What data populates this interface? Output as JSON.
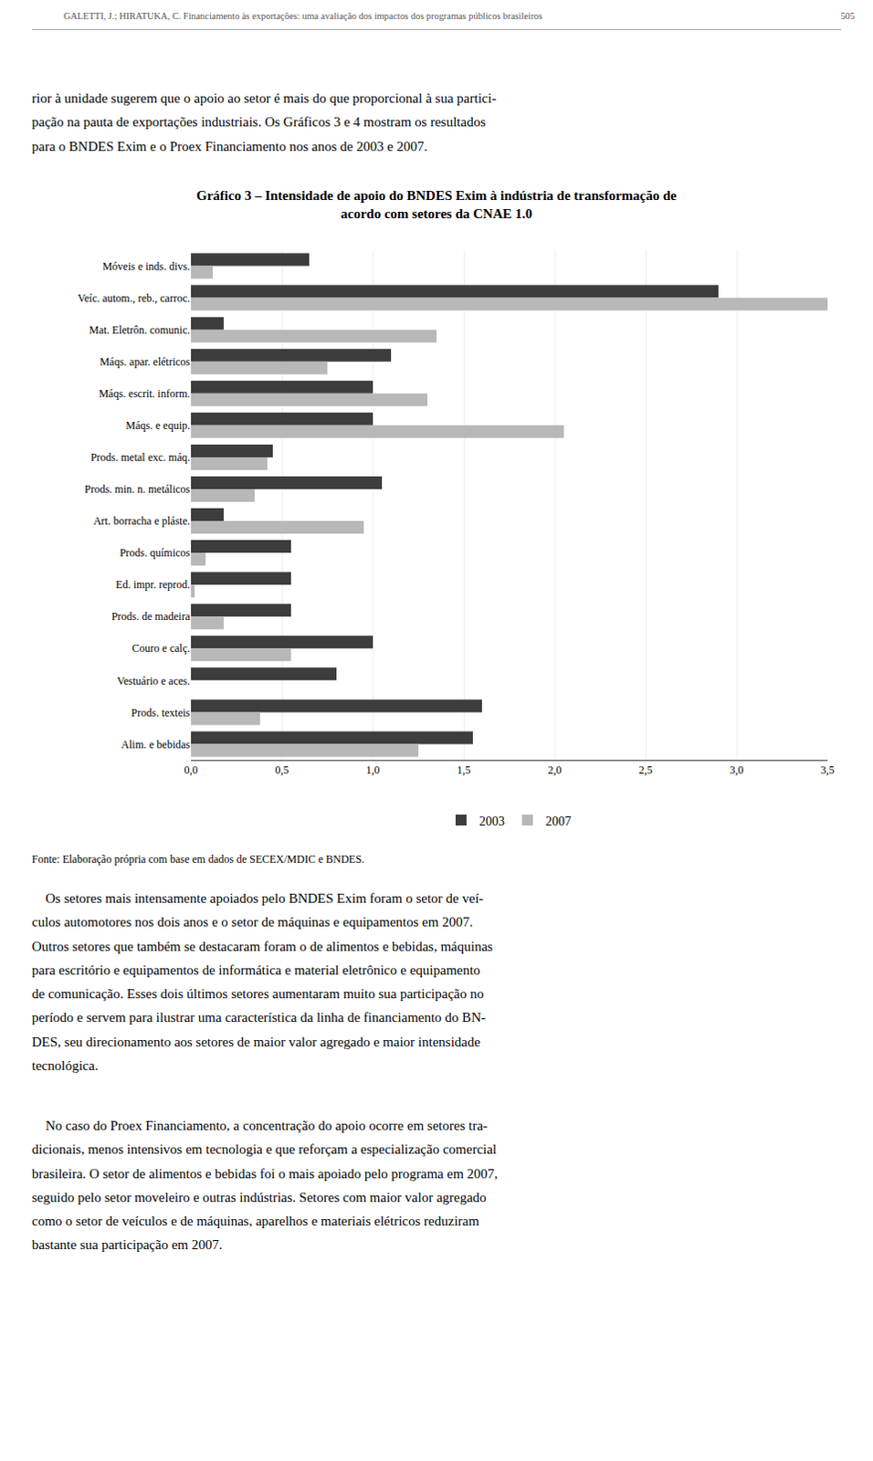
{
  "chart_data": {
    "type": "bar",
    "orientation": "horizontal",
    "title": "Gráfico 3 – Intensidade de apoio do BNDES Exim à indústria de transformação de\nacordo com setores da CNAE 1.0",
    "categories": [
      "Móveis e inds. divs.",
      "Veíc. autom., reb., carroc.",
      "Mat. Eletrôn. comunic.",
      "Máqs. apar. elétricos",
      "Máqs. escrit. inform.",
      "Máqs. e equip.",
      "Prods. metal exc. máq.",
      "Prods. min. n. metálicos",
      "Art. borracha e pláste.",
      "Prods. químicos",
      "Ed. impr. reprod.",
      "Prods. de madeira",
      "Couro e calç.",
      "Vestuário e aces.",
      "Prods. texteis",
      "Alim. e bebidas"
    ],
    "series": [
      {
        "name": "2003",
        "color": "#3d3d3d",
        "values": [
          0.65,
          2.9,
          0.18,
          1.1,
          1.0,
          1.0,
          0.45,
          1.05,
          0.18,
          0.55,
          0.55,
          0.55,
          1.0,
          0.8,
          1.6,
          1.55
        ]
      },
      {
        "name": "2007",
        "color": "#b8b8b8",
        "values": [
          0.12,
          3.5,
          1.35,
          0.75,
          1.3,
          2.05,
          0.42,
          0.35,
          0.95,
          0.08,
          0.02,
          0.18,
          0.55,
          0.0,
          0.38,
          1.25
        ]
      }
    ],
    "xlim": [
      0,
      3.5
    ],
    "xticks": [
      {
        "value": 0,
        "label": "0,0"
      },
      {
        "value": 0.5,
        "label": "0,5"
      },
      {
        "value": 1,
        "label": "1,0"
      },
      {
        "value": 1.5,
        "label": "1,5"
      },
      {
        "value": 2,
        "label": "2,0"
      },
      {
        "value": 2.5,
        "label": "2,5"
      },
      {
        "value": 3,
        "label": "3,0"
      },
      {
        "value": 3.5,
        "label": "3,5"
      }
    ],
    "grid": true,
    "legend": "bottom",
    "annotations": [
      "GALETTI, J.; HIRATUKA, C. Financiamento às exportações: uma avaliação dos impactos dos programas públicos brasileiros",
      "505",
      "rior à unidade sugerem que o apoio ao setor é mais do que proporcional à sua partici-\npação na pauta de exportações industriais. Os Gráficos 3 e 4 mostram os resultados\npara o BNDES Exim e o Proex Financiamento nos anos de 2003 e 2007.",
      "Fonte: Elaboração própria com base em dados de SECEX/MDIC e BNDES.",
      "    Os setores mais intensamente apoiados pelo BNDES Exim foram o setor de veí-\nculos automotores nos dois anos e o setor de máquinas e equipamentos em 2007.\nOutros setores que também se destacaram foram o de alimentos e bebidas, máquinas\npara escritório e equipamentos de informática e material eletrônico e equipamento\nde comunicação. Esses dois últimos setores aumentaram muito sua participação no\nperíodo e servem para ilustrar uma característica da linha de financiamento do BN-\nDES, seu direcionamento aos setores de maior valor agregado e maior intensidade\ntecnológica.",
      "    No caso do Proex Financiamento, a concentração do apoio ocorre em setores tra-\ndicionais, menos intensivos em tecnologia e que reforçam a especialização comercial\nbrasileira. O setor de alimentos e bebidas foi o mais apoiado pelo programa em 2007,\nseguido pelo setor moveleiro e outras indústrias. Setores com maior valor agregado\ncomo o setor de veículos e de máquinas, aparelhos e materiais elétricos reduziram\nbastante sua participação em 2007."
    ]
  }
}
